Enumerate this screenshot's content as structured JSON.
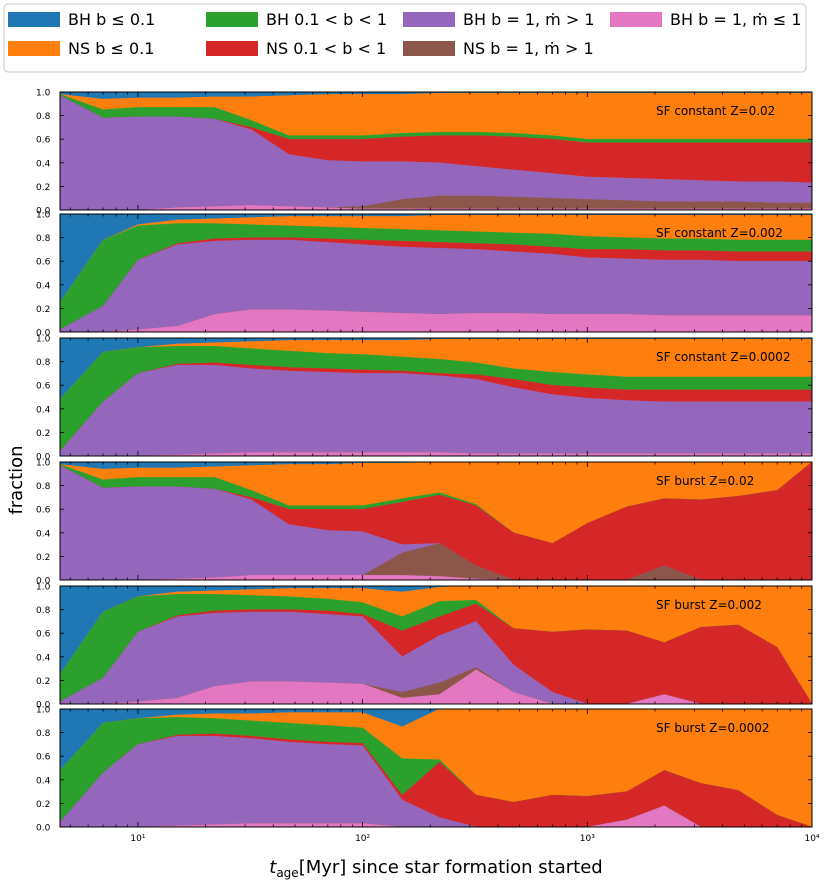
{
  "chart_data": {
    "type": "area",
    "stacked": true,
    "x_scale": "log",
    "xlim": [
      4.5,
      10000
    ],
    "ylim": [
      0,
      1
    ],
    "xlabel": "t_age[Myr] since star formation started",
    "xlabel_parts": {
      "main": "t",
      "sub": "age",
      "rest": "[Myr] since star formation started"
    },
    "ylabel": "fraction",
    "x_ticks": [
      10,
      100,
      1000,
      10000
    ],
    "x_tick_labels": [
      "10¹",
      "10²",
      "10³",
      "10⁴"
    ],
    "y_ticks": [
      0.2,
      0.4,
      0.6,
      0.8,
      1.0
    ],
    "y_tick_labels": [
      "0.2",
      "0.4",
      "0.6",
      "0.8",
      "1.0"
    ],
    "legend_position": "top",
    "legend": [
      {
        "key": "bh_mdot_low",
        "label": "BH b = 1, ṁ ≤ 1",
        "color": "#e377c2"
      },
      {
        "key": "ns_mdot_high",
        "label": "NS b = 1, ṁ > 1",
        "color": "#8c564b"
      },
      {
        "key": "bh_mdot_high",
        "label": "BH b = 1, ṁ > 1",
        "color": "#9467bd"
      },
      {
        "key": "ns_b_mid",
        "label": "NS 0.1 < b < 1",
        "color": "#d62728"
      },
      {
        "key": "bh_b_mid",
        "label": "BH 0.1 < b < 1",
        "color": "#2ca02c"
      },
      {
        "key": "ns_b_low",
        "label": "NS b ≤ 0.1",
        "color": "#ff7f0e"
      },
      {
        "key": "bh_b_low",
        "label": "BH b ≤ 0.1",
        "color": "#1f77b4"
      }
    ],
    "stack_order": [
      "bh_mdot_low",
      "ns_mdot_high",
      "bh_mdot_high",
      "ns_b_mid",
      "bh_b_mid",
      "ns_b_low",
      "bh_b_low"
    ],
    "x": [
      4.5,
      7,
      10,
      15,
      22,
      32,
      47,
      70,
      100,
      150,
      220,
      320,
      470,
      700,
      1000,
      1500,
      2200,
      3200,
      4700,
      7000,
      10000
    ],
    "panels": [
      {
        "title": "SF constant Z=0.02",
        "cumulative": {
          "bh_mdot_low": [
            0,
            0,
            0,
            0.02,
            0.03,
            0.04,
            0.03,
            0.02,
            0.01,
            0.01,
            0.01,
            0.01,
            0.01,
            0.01,
            0.01,
            0.01,
            0.01,
            0.01,
            0.01,
            0.01,
            0.01
          ],
          "ns_mdot_high": [
            0,
            0,
            0,
            0.02,
            0.03,
            0.04,
            0.03,
            0.02,
            0.03,
            0.09,
            0.12,
            0.12,
            0.11,
            0.1,
            0.09,
            0.08,
            0.07,
            0.07,
            0.07,
            0.06,
            0.06
          ],
          "bh_mdot_high": [
            0.97,
            0.78,
            0.79,
            0.79,
            0.77,
            0.68,
            0.47,
            0.42,
            0.41,
            0.41,
            0.4,
            0.37,
            0.34,
            0.31,
            0.28,
            0.27,
            0.26,
            0.25,
            0.24,
            0.24,
            0.23
          ],
          "ns_b_mid": [
            0.97,
            0.78,
            0.79,
            0.79,
            0.77,
            0.7,
            0.6,
            0.6,
            0.6,
            0.62,
            0.63,
            0.63,
            0.62,
            0.6,
            0.57,
            0.57,
            0.57,
            0.57,
            0.57,
            0.57,
            0.57
          ],
          "bh_b_mid": [
            0.98,
            0.85,
            0.87,
            0.87,
            0.87,
            0.76,
            0.63,
            0.63,
            0.63,
            0.65,
            0.66,
            0.66,
            0.65,
            0.63,
            0.6,
            0.6,
            0.6,
            0.6,
            0.6,
            0.6,
            0.6
          ],
          "ns_b_low": [
            0.98,
            0.94,
            0.95,
            0.95,
            0.96,
            0.96,
            0.97,
            0.98,
            0.98,
            0.98,
            0.99,
            0.99,
            0.99,
            0.99,
            0.99,
            0.99,
            0.99,
            0.99,
            0.99,
            0.99,
            0.99
          ],
          "bh_b_low": [
            1,
            1,
            1,
            1,
            1,
            1,
            1,
            1,
            1,
            1,
            1,
            1,
            1,
            1,
            1,
            1,
            1,
            1,
            1,
            1,
            1
          ]
        }
      },
      {
        "title": "SF constant Z=0.002",
        "cumulative": {
          "bh_mdot_low": [
            0,
            0,
            0.02,
            0.05,
            0.15,
            0.19,
            0.19,
            0.18,
            0.17,
            0.16,
            0.15,
            0.16,
            0.16,
            0.15,
            0.15,
            0.15,
            0.14,
            0.14,
            0.14,
            0.14,
            0.14
          ],
          "ns_mdot_high": [
            0,
            0,
            0.02,
            0.05,
            0.15,
            0.19,
            0.19,
            0.18,
            0.17,
            0.16,
            0.15,
            0.16,
            0.16,
            0.15,
            0.15,
            0.15,
            0.14,
            0.14,
            0.14,
            0.14,
            0.14
          ],
          "bh_mdot_high": [
            0.02,
            0.22,
            0.61,
            0.74,
            0.77,
            0.78,
            0.78,
            0.76,
            0.74,
            0.72,
            0.71,
            0.7,
            0.68,
            0.66,
            0.63,
            0.62,
            0.61,
            0.61,
            0.6,
            0.6,
            0.6
          ],
          "ns_b_mid": [
            0.02,
            0.22,
            0.61,
            0.75,
            0.79,
            0.8,
            0.8,
            0.79,
            0.78,
            0.77,
            0.76,
            0.75,
            0.74,
            0.72,
            0.7,
            0.7,
            0.69,
            0.69,
            0.68,
            0.68,
            0.68
          ],
          "bh_b_mid": [
            0.25,
            0.78,
            0.9,
            0.92,
            0.92,
            0.91,
            0.9,
            0.89,
            0.88,
            0.87,
            0.86,
            0.85,
            0.84,
            0.83,
            0.81,
            0.8,
            0.79,
            0.79,
            0.78,
            0.78,
            0.78
          ],
          "ns_b_low": [
            0.25,
            0.78,
            0.91,
            0.95,
            0.96,
            0.97,
            0.98,
            0.98,
            0.98,
            0.98,
            0.99,
            0.99,
            0.99,
            0.99,
            0.99,
            0.99,
            0.99,
            0.99,
            0.99,
            0.99,
            0.99
          ],
          "bh_b_low": [
            1,
            1,
            1,
            1,
            1,
            1,
            1,
            1,
            1,
            1,
            1,
            1,
            1,
            1,
            1,
            1,
            1,
            1,
            1,
            1,
            1
          ]
        }
      },
      {
        "title": "SF constant Z=0.0002",
        "cumulative": {
          "bh_mdot_low": [
            0,
            0,
            0,
            0.01,
            0.02,
            0.03,
            0.03,
            0.03,
            0.03,
            0.03,
            0.03,
            0.02,
            0.02,
            0.02,
            0.02,
            0.02,
            0.02,
            0.02,
            0.02,
            0.02,
            0.02
          ],
          "ns_mdot_high": [
            0,
            0,
            0,
            0.01,
            0.02,
            0.03,
            0.03,
            0.03,
            0.03,
            0.03,
            0.03,
            0.02,
            0.02,
            0.02,
            0.02,
            0.02,
            0.02,
            0.02,
            0.02,
            0.02,
            0.02
          ],
          "bh_mdot_high": [
            0.04,
            0.46,
            0.7,
            0.77,
            0.77,
            0.74,
            0.72,
            0.71,
            0.7,
            0.7,
            0.68,
            0.65,
            0.58,
            0.52,
            0.49,
            0.47,
            0.46,
            0.46,
            0.46,
            0.46,
            0.46
          ],
          "ns_b_mid": [
            0.04,
            0.46,
            0.7,
            0.78,
            0.79,
            0.77,
            0.75,
            0.74,
            0.73,
            0.72,
            0.7,
            0.69,
            0.65,
            0.6,
            0.58,
            0.56,
            0.56,
            0.56,
            0.56,
            0.56,
            0.56
          ],
          "bh_b_mid": [
            0.48,
            0.88,
            0.92,
            0.93,
            0.93,
            0.91,
            0.89,
            0.87,
            0.86,
            0.84,
            0.82,
            0.79,
            0.74,
            0.71,
            0.69,
            0.67,
            0.67,
            0.67,
            0.67,
            0.67,
            0.67
          ],
          "ns_b_low": [
            0.48,
            0.88,
            0.92,
            0.95,
            0.96,
            0.97,
            0.98,
            0.98,
            0.98,
            0.98,
            0.99,
            0.99,
            0.99,
            0.99,
            0.99,
            0.99,
            0.99,
            0.99,
            0.99,
            0.99,
            0.99
          ],
          "bh_b_low": [
            1,
            1,
            1,
            1,
            1,
            1,
            1,
            1,
            1,
            1,
            1,
            1,
            1,
            1,
            1,
            1,
            1,
            1,
            1,
            1,
            1
          ]
        }
      },
      {
        "title": "SF burst Z=0.02",
        "cumulative": {
          "bh_mdot_low": [
            0,
            0,
            0,
            0.01,
            0.02,
            0.04,
            0.04,
            0.04,
            0.04,
            0.04,
            0.03,
            0.01,
            0,
            0,
            0,
            0,
            0,
            0,
            0,
            0,
            0
          ],
          "ns_mdot_high": [
            0,
            0,
            0,
            0.01,
            0.02,
            0.04,
            0.04,
            0.04,
            0.04,
            0.23,
            0.31,
            0.12,
            0,
            0,
            0,
            0,
            0.12,
            0,
            0,
            0,
            0
          ],
          "bh_mdot_high": [
            0.97,
            0.78,
            0.79,
            0.79,
            0.77,
            0.68,
            0.47,
            0.42,
            0.41,
            0.3,
            0.31,
            0.12,
            0,
            0,
            0,
            0,
            0.12,
            0,
            0,
            0,
            0
          ],
          "ns_b_mid": [
            0.97,
            0.78,
            0.79,
            0.79,
            0.77,
            0.7,
            0.6,
            0.6,
            0.6,
            0.66,
            0.72,
            0.63,
            0.4,
            0.31,
            0.48,
            0.62,
            0.69,
            0.68,
            0.71,
            0.76,
            1.0
          ],
          "bh_b_mid": [
            0.98,
            0.85,
            0.87,
            0.87,
            0.87,
            0.76,
            0.63,
            0.63,
            0.63,
            0.69,
            0.74,
            0.64,
            0.4,
            0.31,
            0.48,
            0.62,
            0.69,
            0.68,
            0.71,
            0.76,
            1.0
          ],
          "ns_b_low": [
            0.98,
            0.94,
            0.95,
            0.95,
            0.96,
            0.97,
            0.98,
            0.98,
            0.99,
            0.99,
            1.0,
            1.0,
            1.0,
            1.0,
            1.0,
            1.0,
            1.0,
            1.0,
            1.0,
            1.0,
            1.0
          ],
          "bh_b_low": [
            1,
            1,
            1,
            1,
            1,
            1,
            1,
            1,
            1,
            1,
            1,
            1,
            1,
            1,
            1,
            1,
            1,
            1,
            1,
            1,
            1
          ]
        }
      },
      {
        "title": "SF burst Z=0.002",
        "cumulative": {
          "bh_mdot_low": [
            0,
            0,
            0.02,
            0.05,
            0.15,
            0.19,
            0.19,
            0.18,
            0.17,
            0.05,
            0.08,
            0.29,
            0.1,
            0,
            0,
            0,
            0.08,
            0,
            0,
            0,
            0
          ],
          "ns_mdot_high": [
            0,
            0,
            0.02,
            0.05,
            0.15,
            0.19,
            0.19,
            0.18,
            0.17,
            0.1,
            0.18,
            0.31,
            0.1,
            0,
            0,
            0,
            0.08,
            0,
            0,
            0,
            0
          ],
          "bh_mdot_high": [
            0.02,
            0.22,
            0.61,
            0.74,
            0.77,
            0.78,
            0.78,
            0.76,
            0.74,
            0.4,
            0.58,
            0.7,
            0.33,
            0.1,
            0,
            0,
            0.08,
            0,
            0,
            0,
            0
          ],
          "ns_b_mid": [
            0.02,
            0.22,
            0.61,
            0.75,
            0.79,
            0.8,
            0.8,
            0.79,
            0.76,
            0.62,
            0.74,
            0.85,
            0.64,
            0.61,
            0.63,
            0.62,
            0.52,
            0.65,
            0.67,
            0.48,
            0
          ],
          "bh_b_mid": [
            0.25,
            0.78,
            0.91,
            0.93,
            0.93,
            0.92,
            0.91,
            0.89,
            0.86,
            0.74,
            0.87,
            0.88,
            0.64,
            0.61,
            0.63,
            0.62,
            0.52,
            0.65,
            0.67,
            0.48,
            0
          ],
          "ns_b_low": [
            0.25,
            0.78,
            0.91,
            0.95,
            0.96,
            0.97,
            0.98,
            0.98,
            0.98,
            0.95,
            0.99,
            1.0,
            1.0,
            1.0,
            1.0,
            1.0,
            1.0,
            1.0,
            1.0,
            1.0,
            1.0
          ],
          "bh_b_low": [
            1,
            1,
            1,
            1,
            1,
            1,
            1,
            1,
            1,
            1,
            1,
            1,
            1,
            1,
            1,
            1,
            1,
            1,
            1,
            1,
            1
          ]
        }
      },
      {
        "title": "SF burst Z=0.0002",
        "cumulative": {
          "bh_mdot_low": [
            0,
            0,
            0,
            0.01,
            0.02,
            0.03,
            0.03,
            0.03,
            0.03,
            0,
            0,
            0,
            0,
            0,
            0,
            0.06,
            0.18,
            0,
            0,
            0,
            0
          ],
          "ns_mdot_high": [
            0,
            0,
            0,
            0.01,
            0.02,
            0.03,
            0.03,
            0.03,
            0.03,
            0,
            0,
            0,
            0,
            0,
            0,
            0.06,
            0.18,
            0,
            0,
            0,
            0
          ],
          "bh_mdot_high": [
            0.04,
            0.46,
            0.7,
            0.77,
            0.77,
            0.75,
            0.72,
            0.7,
            0.69,
            0.23,
            0.08,
            0,
            0,
            0,
            0,
            0.06,
            0.18,
            0,
            0,
            0,
            0
          ],
          "ns_b_mid": [
            0.04,
            0.46,
            0.7,
            0.78,
            0.79,
            0.77,
            0.74,
            0.72,
            0.71,
            0.27,
            0.55,
            0.27,
            0.21,
            0.27,
            0.26,
            0.3,
            0.48,
            0.37,
            0.31,
            0.1,
            0
          ],
          "bh_b_mid": [
            0.48,
            0.88,
            0.92,
            0.93,
            0.92,
            0.9,
            0.88,
            0.86,
            0.84,
            0.58,
            0.57,
            0.27,
            0.21,
            0.27,
            0.26,
            0.3,
            0.48,
            0.37,
            0.31,
            0.1,
            0
          ],
          "ns_b_low": [
            0.48,
            0.88,
            0.92,
            0.95,
            0.96,
            0.96,
            0.97,
            0.97,
            0.97,
            0.85,
            1.0,
            1.0,
            1.0,
            1.0,
            1.0,
            1.0,
            1.0,
            1.0,
            1.0,
            1.0,
            1.0
          ],
          "bh_b_low": [
            1,
            1,
            1,
            1,
            1,
            1,
            1,
            1,
            1,
            1,
            1,
            1,
            1,
            1,
            1,
            1,
            1,
            1,
            1,
            1,
            1
          ]
        }
      }
    ]
  }
}
